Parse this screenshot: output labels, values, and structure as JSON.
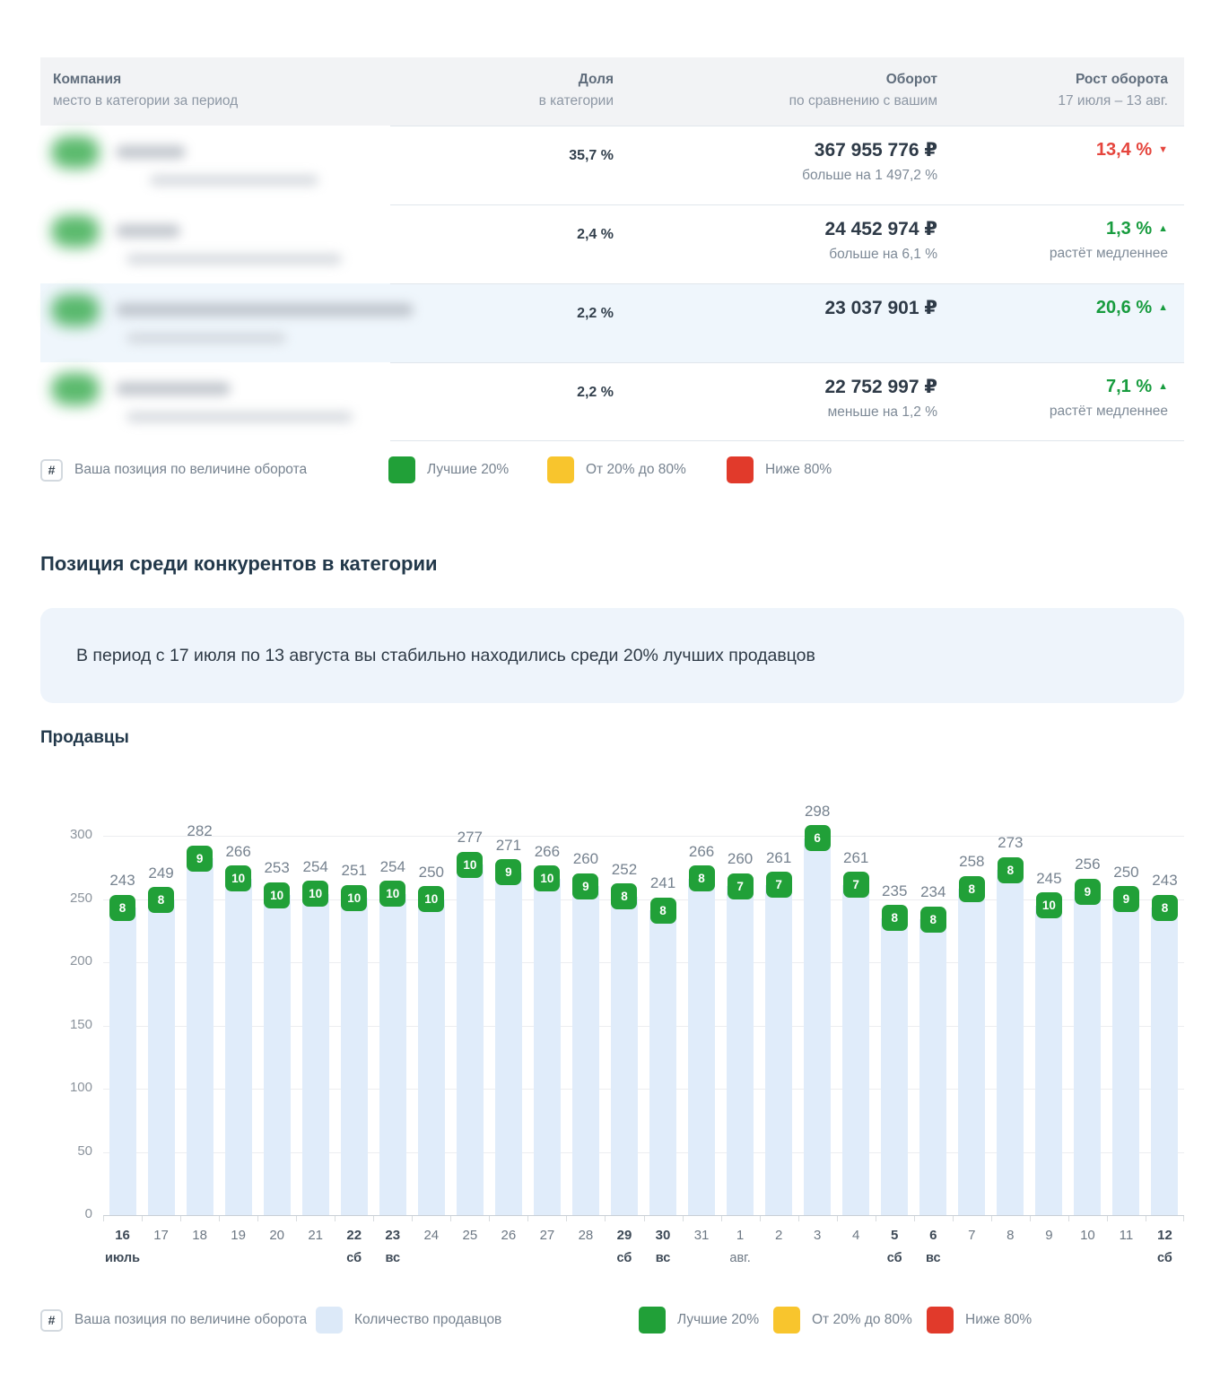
{
  "hash_symbol": "#",
  "table": {
    "header": {
      "company_line1": "Компания",
      "company_line2": "место в категории за период",
      "share_line1": "Доля",
      "share_line2": "в категории",
      "turnover_line1": "Оборот",
      "turnover_line2": "по сравнению с вашим",
      "growth_line1": "Рост оборота",
      "growth_line2": "17 июля – 13 авг."
    },
    "rows": [
      {
        "share": "35,7 %",
        "turnover": "367 955 776 ₽",
        "turnover_note": "больше на 1 497,2 %",
        "growth": "13,4 %",
        "growth_dir": "down",
        "growth_note": "",
        "highlighted": false
      },
      {
        "share": "2,4 %",
        "turnover": "24 452 974 ₽",
        "turnover_note": "больше на 6,1 %",
        "growth": "1,3 %",
        "growth_dir": "up",
        "growth_note": "растёт медленнее",
        "highlighted": false
      },
      {
        "share": "2,2 %",
        "turnover": "23 037 901 ₽",
        "turnover_note": "",
        "growth": "20,6 %",
        "growth_dir": "up",
        "growth_note": "",
        "highlighted": true
      },
      {
        "share": "2,2 %",
        "turnover": "22 752 997 ₽",
        "turnover_note": "меньше на 1,2 %",
        "growth": "7,1 %",
        "growth_dir": "up",
        "growth_note": "растёт медленнее",
        "highlighted": false
      }
    ]
  },
  "table_legend": {
    "position_label": "Ваша позиция по величине оборота",
    "items": [
      {
        "label": "Лучшие 20%",
        "color": "#21a038"
      },
      {
        "label": "От 20% до 80%",
        "color": "#f8c52d"
      },
      {
        "label": "Ниже 80%",
        "color": "#e13a2b"
      }
    ]
  },
  "section": {
    "title": "Позиция среди конкурентов в категории",
    "note": "В период с 17 июля по 13 августа вы стабильно находились среди 20% лучших продавцов"
  },
  "chart_data": {
    "type": "bar",
    "title": "Продавцы",
    "xlabel": "",
    "ylabel": "",
    "ylim": [
      0,
      300
    ],
    "yticks": [
      0,
      50,
      100,
      150,
      200,
      250,
      300
    ],
    "grid": true,
    "legend_position": "bottom",
    "bar_color": "#e0ecfa",
    "badge_color": "#21a038",
    "categories": [
      {
        "day": "16",
        "sub": "июль",
        "bold": true
      },
      {
        "day": "17",
        "sub": "",
        "bold": false
      },
      {
        "day": "18",
        "sub": "",
        "bold": false
      },
      {
        "day": "19",
        "sub": "",
        "bold": false
      },
      {
        "day": "20",
        "sub": "",
        "bold": false
      },
      {
        "day": "21",
        "sub": "",
        "bold": false
      },
      {
        "day": "22",
        "sub": "сб",
        "bold": true
      },
      {
        "day": "23",
        "sub": "вс",
        "bold": true
      },
      {
        "day": "24",
        "sub": "",
        "bold": false
      },
      {
        "day": "25",
        "sub": "",
        "bold": false
      },
      {
        "day": "26",
        "sub": "",
        "bold": false
      },
      {
        "day": "27",
        "sub": "",
        "bold": false
      },
      {
        "day": "28",
        "sub": "",
        "bold": false
      },
      {
        "day": "29",
        "sub": "сб",
        "bold": true
      },
      {
        "day": "30",
        "sub": "вс",
        "bold": true
      },
      {
        "day": "31",
        "sub": "",
        "bold": false
      },
      {
        "day": "1",
        "sub": "авг.",
        "bold": false
      },
      {
        "day": "2",
        "sub": "",
        "bold": false
      },
      {
        "day": "3",
        "sub": "",
        "bold": false
      },
      {
        "day": "4",
        "sub": "",
        "bold": false
      },
      {
        "day": "5",
        "sub": "сб",
        "bold": true
      },
      {
        "day": "6",
        "sub": "вс",
        "bold": true
      },
      {
        "day": "7",
        "sub": "",
        "bold": false
      },
      {
        "day": "8",
        "sub": "",
        "bold": false
      },
      {
        "day": "9",
        "sub": "",
        "bold": false
      },
      {
        "day": "10",
        "sub": "",
        "bold": false
      },
      {
        "day": "11",
        "sub": "",
        "bold": false
      },
      {
        "day": "12",
        "sub": "сб",
        "bold": true
      }
    ],
    "series": [
      {
        "name": "Количество продавцов",
        "values": [
          243,
          249,
          282,
          266,
          253,
          254,
          251,
          254,
          250,
          277,
          271,
          266,
          260,
          252,
          241,
          266,
          260,
          261,
          298,
          261,
          235,
          234,
          258,
          273,
          245,
          256,
          250,
          243
        ]
      },
      {
        "name": "Ваша позиция по величине оборота",
        "values": [
          8,
          8,
          9,
          10,
          10,
          10,
          10,
          10,
          10,
          10,
          9,
          10,
          9,
          8,
          8,
          8,
          7,
          7,
          6,
          7,
          8,
          8,
          8,
          8,
          10,
          9,
          9,
          8
        ]
      }
    ]
  },
  "chart_legend": {
    "position_label": "Ваша позиция по величине оборота",
    "items": [
      {
        "label": "Количество продавцов",
        "color": "#dce9f8"
      },
      {
        "label": "Лучшие 20%",
        "color": "#21a038"
      },
      {
        "label": "От 20% до 80%",
        "color": "#f8c52d"
      },
      {
        "label": "Ниже 80%",
        "color": "#e13a2b"
      }
    ]
  },
  "colors": {
    "accent_green": "#21a038",
    "warn_yellow": "#f8c52d",
    "bad_red": "#e13a2b",
    "growth_up_text": "#189c3f",
    "growth_down_text": "#e5453d",
    "bar_blue": "#e0ecfa",
    "highlight_row": "#eff6fc",
    "note_background": "#eef4fb"
  }
}
